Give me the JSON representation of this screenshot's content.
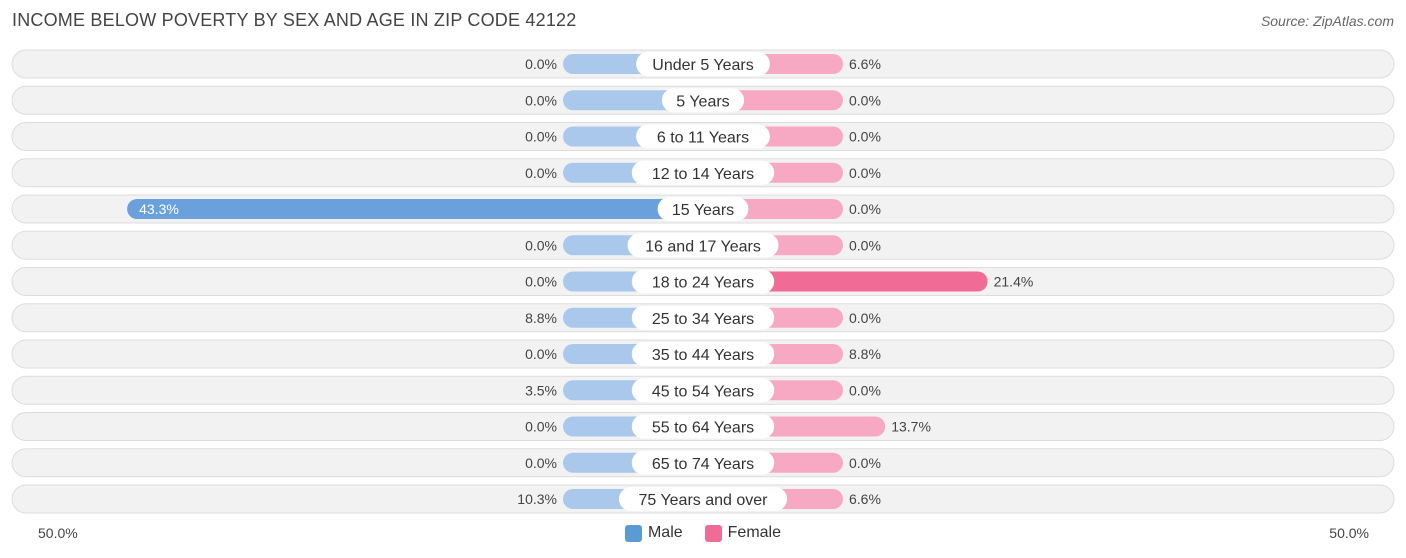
{
  "title": "INCOME BELOW POVERTY BY SEX AND AGE IN ZIP CODE 42122",
  "source": "Source: ZipAtlas.com",
  "axis": {
    "left_label": "50.0%",
    "right_label": "50.0%"
  },
  "legend": {
    "male_label": "Male",
    "female_label": "Female",
    "male_color": "#5b9bd5",
    "female_color": "#f06b96"
  },
  "colors": {
    "male_strong": "#6aa0dc",
    "male_light": "#aac8ec",
    "female_strong": "#f06b96",
    "female_light": "#f7a9c3",
    "row_bg": "#f2f2f2",
    "row_border": "#dddddd"
  },
  "chart_data": {
    "type": "bar",
    "orientation": "horizontal",
    "title": "INCOME BELOW POVERTY BY SEX AND AGE IN ZIP CODE 42122",
    "xlim": [
      -50,
      50
    ],
    "categories": [
      "Under 5 Years",
      "5 Years",
      "6 to 11 Years",
      "12 to 14 Years",
      "15 Years",
      "16 and 17 Years",
      "18 to 24 Years",
      "25 to 34 Years",
      "35 to 44 Years",
      "45 to 54 Years",
      "55 to 64 Years",
      "65 to 74 Years",
      "75 Years and over"
    ],
    "series": [
      {
        "name": "Male",
        "values": [
          0.0,
          0.0,
          0.0,
          0.0,
          43.3,
          0.0,
          0.0,
          8.8,
          0.0,
          3.5,
          0.0,
          0.0,
          10.3
        ],
        "labels": [
          "0.0%",
          "0.0%",
          "0.0%",
          "0.0%",
          "43.3%",
          "0.0%",
          "0.0%",
          "8.8%",
          "0.0%",
          "3.5%",
          "0.0%",
          "0.0%",
          "10.3%"
        ]
      },
      {
        "name": "Female",
        "values": [
          6.6,
          0.0,
          0.0,
          0.0,
          0.0,
          0.0,
          21.4,
          0.0,
          8.8,
          0.0,
          13.7,
          0.0,
          6.6
        ],
        "labels": [
          "6.6%",
          "0.0%",
          "0.0%",
          "0.0%",
          "0.0%",
          "0.0%",
          "21.4%",
          "0.0%",
          "8.8%",
          "0.0%",
          "13.7%",
          "0.0%",
          "6.6%"
        ]
      }
    ],
    "legend_position": "bottom-center"
  }
}
